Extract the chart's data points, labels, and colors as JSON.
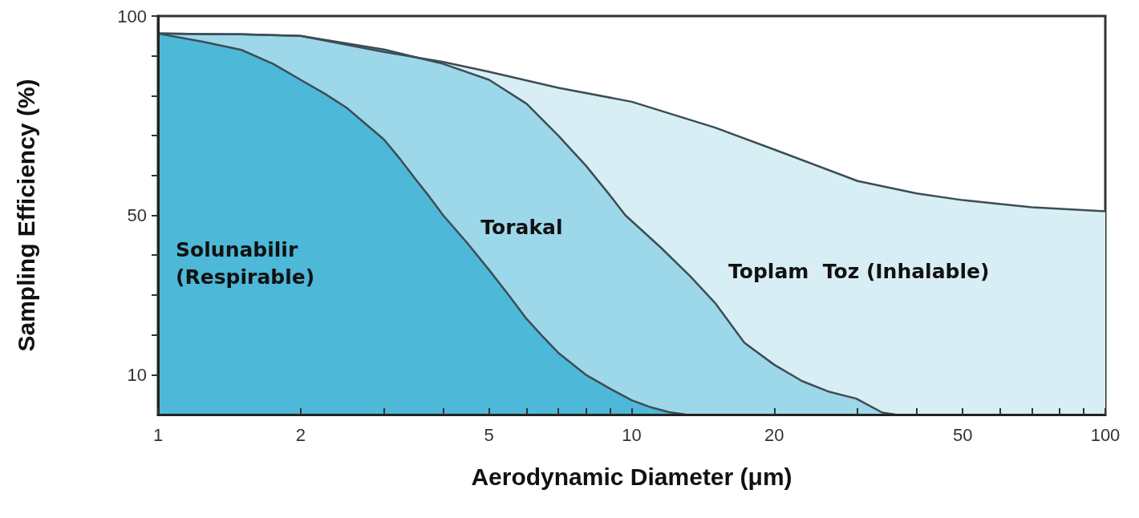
{
  "chart_data": {
    "type": "area",
    "xlabel": "Aerodynamic Diameter (μm)",
    "ylabel": "Sampling Efficiency (%)",
    "log": "x",
    "xlim": [
      1,
      100
    ],
    "ylim": [
      0,
      100
    ],
    "xticks": [
      1,
      2,
      {
        "value": 3,
        "label": null
      },
      {
        "value": 4,
        "label": null
      },
      5,
      {
        "value": 6,
        "label": null
      },
      {
        "value": 7,
        "label": null
      },
      {
        "value": 8,
        "label": null
      },
      {
        "value": 9,
        "label": null
      },
      10,
      20,
      {
        "value": 30,
        "label": null
      },
      {
        "value": 40,
        "label": null
      },
      50,
      {
        "value": 60,
        "label": null
      },
      {
        "value": 70,
        "label": null
      },
      {
        "value": 80,
        "label": null
      },
      {
        "value": 90,
        "label": null
      },
      100
    ],
    "yticks": [
      10,
      {
        "value": 20,
        "label": null
      },
      {
        "value": 30,
        "label": null
      },
      {
        "value": 40,
        "label": null
      },
      50,
      {
        "value": 60,
        "label": null
      },
      {
        "value": 70,
        "label": null
      },
      {
        "value": 80,
        "label": null
      },
      {
        "value": 90,
        "label": null
      },
      100
    ],
    "grid": false,
    "legend": false,
    "stacked": false,
    "series": [
      {
        "name": "Toplam  Toz (Inhalable)",
        "color": "#d8eef5",
        "x": [
          1,
          1.5,
          2,
          3,
          4,
          5,
          7,
          10,
          15,
          20,
          30,
          40,
          50,
          70,
          100
        ],
        "values": [
          95.6,
          95.4,
          95,
          91,
          88.5,
          86,
          82,
          78.5,
          72,
          66.5,
          58.6,
          55.5,
          53.8,
          52,
          51
        ]
      },
      {
        "name": "Torakal",
        "color": "#9dd8ea",
        "x": [
          1,
          1.5,
          2,
          3,
          4,
          5,
          6,
          7,
          8,
          9,
          9.7,
          11.5,
          13.3,
          15,
          17.3,
          20,
          22.9,
          26,
          29.8,
          33.8,
          36
        ],
        "values": [
          95.6,
          95.4,
          95,
          91.6,
          88,
          84,
          78,
          70,
          62.5,
          55,
          50,
          42,
          34.7,
          28,
          18,
          12.5,
          8.4,
          5.8,
          4,
          0.5,
          0
        ]
      },
      {
        "name": "Solunabilir (Respirable)",
        "color": "#4db8d8",
        "x": [
          1,
          1.25,
          1.5,
          1.75,
          2,
          2.25,
          2.5,
          3,
          3.25,
          3.5,
          3.75,
          4,
          4.5,
          5,
          5.5,
          6,
          6.5,
          7,
          8,
          9,
          10,
          11,
          12,
          13
        ],
        "values": [
          95.6,
          93.5,
          91.5,
          88,
          84,
          80.5,
          77,
          69,
          64,
          59,
          54.5,
          50,
          43,
          36.3,
          30,
          24,
          19.5,
          15.5,
          10,
          6.5,
          3.6,
          1.8,
          0.6,
          0
        ]
      }
    ]
  }
}
